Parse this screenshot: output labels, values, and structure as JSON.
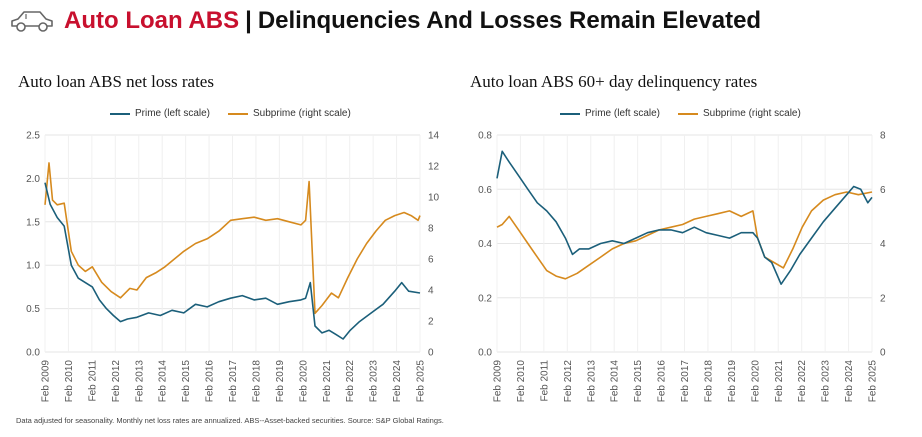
{
  "header": {
    "title_red": "Auto Loan ABS",
    "separator": "|",
    "title_black": "Delinquencies And Losses Remain Elevated"
  },
  "colors": {
    "prime": "#1b5f7a",
    "subprime": "#d68a1e",
    "brand_red": "#c8102e",
    "grid": "#e6e6e6"
  },
  "footnote": "Data adjusted for seasonality. Monthly net loss rates are annualized. ABS--Asset-backed securities. Source: S&P Global Ratings.",
  "chart_data": [
    {
      "type": "line",
      "title": "Auto loan ABS net loss rates",
      "left_ylim": [
        0,
        2.5
      ],
      "left_ticks": [
        "0.0",
        "0.5",
        "1.0",
        "1.5",
        "2.0",
        "2.5"
      ],
      "right_ylim": [
        0,
        14
      ],
      "right_ticks": [
        "0",
        "2",
        "4",
        "6",
        "8",
        "10",
        "12",
        "14"
      ],
      "x_labels": [
        "Feb 2009",
        "Feb 2010",
        "Feb 2011",
        "Feb 2012",
        "Feb 2013",
        "Feb 2014",
        "Feb 2015",
        "Feb 2016",
        "Feb 2017",
        "Feb 2018",
        "Feb 2019",
        "Feb 2020",
        "Feb 2021",
        "Feb 2022",
        "Feb 2023",
        "Feb 2024",
        "Feb 2025"
      ],
      "x_range": [
        2009.08,
        2025.08
      ],
      "series": [
        {
          "name": "Prime (left scale)",
          "axis": "left",
          "x": [
            2009.08,
            2009.3,
            2009.6,
            2009.9,
            2010.2,
            2010.5,
            2010.8,
            2011.1,
            2011.4,
            2011.7,
            2012.0,
            2012.3,
            2012.6,
            2013.0,
            2013.5,
            2014.0,
            2014.5,
            2015.0,
            2015.5,
            2016.0,
            2016.5,
            2017.0,
            2017.5,
            2018.0,
            2018.5,
            2019.0,
            2019.5,
            2020.0,
            2020.2,
            2020.4,
            2020.6,
            2020.9,
            2021.2,
            2021.5,
            2021.8,
            2022.1,
            2022.5,
            2023.0,
            2023.5,
            2024.0,
            2024.3,
            2024.6,
            2025.08
          ],
          "y": [
            1.95,
            1.7,
            1.55,
            1.45,
            1.0,
            0.85,
            0.8,
            0.75,
            0.6,
            0.5,
            0.42,
            0.35,
            0.38,
            0.4,
            0.45,
            0.42,
            0.48,
            0.45,
            0.55,
            0.52,
            0.58,
            0.62,
            0.65,
            0.6,
            0.62,
            0.55,
            0.58,
            0.6,
            0.62,
            0.8,
            0.3,
            0.22,
            0.25,
            0.2,
            0.15,
            0.25,
            0.35,
            0.45,
            0.55,
            0.7,
            0.8,
            0.7,
            0.68
          ]
        },
        {
          "name": "Subprime (right scale)",
          "axis": "right",
          "x": [
            2009.08,
            2009.25,
            2009.4,
            2009.6,
            2009.9,
            2010.2,
            2010.5,
            2010.8,
            2011.1,
            2011.5,
            2011.9,
            2012.3,
            2012.7,
            2013.0,
            2013.4,
            2013.8,
            2014.2,
            2014.6,
            2015.0,
            2015.5,
            2016.0,
            2016.5,
            2017.0,
            2017.5,
            2018.0,
            2018.5,
            2019.0,
            2019.5,
            2020.0,
            2020.2,
            2020.35,
            2020.6,
            2020.9,
            2021.3,
            2021.6,
            2022.0,
            2022.4,
            2022.8,
            2023.2,
            2023.6,
            2024.0,
            2024.4,
            2024.7,
            2025.0,
            2025.08
          ],
          "y": [
            9.5,
            12.2,
            9.8,
            9.5,
            9.6,
            6.5,
            5.6,
            5.2,
            5.5,
            4.5,
            3.9,
            3.5,
            4.1,
            4.0,
            4.8,
            5.1,
            5.5,
            6.0,
            6.5,
            7.0,
            7.3,
            7.8,
            8.5,
            8.6,
            8.7,
            8.5,
            8.6,
            8.4,
            8.2,
            8.5,
            11.0,
            2.5,
            3.0,
            3.8,
            3.5,
            4.8,
            6.0,
            7.0,
            7.8,
            8.5,
            8.8,
            9.0,
            8.8,
            8.5,
            8.8
          ]
        }
      ]
    },
    {
      "type": "line",
      "title": "Auto loan ABS 60+ day delinquency rates",
      "left_ylim": [
        0,
        0.8
      ],
      "left_ticks": [
        "0.0",
        "0.2",
        "0.4",
        "0.6",
        "0.8"
      ],
      "right_ylim": [
        0,
        8
      ],
      "right_ticks": [
        "0",
        "2",
        "4",
        "6",
        "8"
      ],
      "x_labels": [
        "Feb 2009",
        "Feb 2010",
        "Feb 2011",
        "Feb 2012",
        "Feb 2013",
        "Feb 2014",
        "Feb 2015",
        "Feb 2016",
        "Feb 2017",
        "Feb 2018",
        "Feb 2019",
        "Feb 2020",
        "Feb 2021",
        "Feb 2022",
        "Feb 2023",
        "Feb 2024",
        "Feb 2025"
      ],
      "x_range": [
        2009.08,
        2025.08
      ],
      "series": [
        {
          "name": "Prime (left scale)",
          "axis": "left",
          "x": [
            2009.08,
            2009.3,
            2009.6,
            2010.0,
            2010.4,
            2010.8,
            2011.2,
            2011.6,
            2012.0,
            2012.3,
            2012.6,
            2013.0,
            2013.5,
            2014.0,
            2014.5,
            2015.0,
            2015.5,
            2016.0,
            2016.5,
            2017.0,
            2017.5,
            2018.0,
            2018.5,
            2019.0,
            2019.5,
            2020.0,
            2020.2,
            2020.5,
            2020.8,
            2021.2,
            2021.6,
            2022.0,
            2022.5,
            2023.0,
            2023.5,
            2024.0,
            2024.3,
            2024.6,
            2024.9,
            2025.08
          ],
          "y": [
            0.64,
            0.74,
            0.7,
            0.65,
            0.6,
            0.55,
            0.52,
            0.48,
            0.42,
            0.36,
            0.38,
            0.38,
            0.4,
            0.41,
            0.4,
            0.42,
            0.44,
            0.45,
            0.45,
            0.44,
            0.46,
            0.44,
            0.43,
            0.42,
            0.44,
            0.44,
            0.42,
            0.35,
            0.33,
            0.25,
            0.3,
            0.36,
            0.42,
            0.48,
            0.53,
            0.58,
            0.61,
            0.6,
            0.55,
            0.57
          ]
        },
        {
          "name": "Subprime (right scale)",
          "axis": "right",
          "x": [
            2009.08,
            2009.3,
            2009.6,
            2010.0,
            2010.4,
            2010.8,
            2011.2,
            2011.6,
            2012.0,
            2012.5,
            2013.0,
            2013.5,
            2014.0,
            2014.5,
            2015.0,
            2015.5,
            2016.0,
            2016.5,
            2017.0,
            2017.5,
            2018.0,
            2018.5,
            2019.0,
            2019.5,
            2020.0,
            2020.2,
            2020.5,
            2020.9,
            2021.3,
            2021.7,
            2022.1,
            2022.5,
            2023.0,
            2023.5,
            2024.0,
            2024.5,
            2025.08
          ],
          "y": [
            4.6,
            4.7,
            5.0,
            4.5,
            4.0,
            3.5,
            3.0,
            2.8,
            2.7,
            2.9,
            3.2,
            3.5,
            3.8,
            4.0,
            4.1,
            4.3,
            4.5,
            4.6,
            4.7,
            4.9,
            5.0,
            5.1,
            5.2,
            5.0,
            5.2,
            4.2,
            3.5,
            3.3,
            3.1,
            3.8,
            4.6,
            5.2,
            5.6,
            5.8,
            5.9,
            5.8,
            5.9
          ]
        }
      ]
    }
  ]
}
